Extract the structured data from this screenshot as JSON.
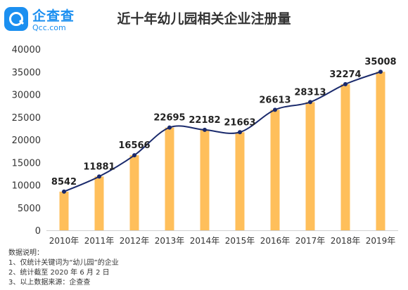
{
  "logo": {
    "name": "企查查",
    "url": "Qcc.com",
    "icon": "magnifier-icon",
    "color": "#1b8ff0"
  },
  "chart_data": {
    "type": "bar",
    "title": "近十年幼儿园相关企业注册量",
    "xlabel": "",
    "ylabel": "",
    "categories": [
      "2010年",
      "2011年",
      "2012年",
      "2013年",
      "2014年",
      "2015年",
      "2016年",
      "2017年",
      "2018年",
      "2019年"
    ],
    "values": [
      8542,
      11881,
      16566,
      22695,
      22182,
      21663,
      26613,
      28313,
      32274,
      35008
    ],
    "overlay_line": {
      "style": "smooth",
      "marker": "dot",
      "color": "#1a2a6c"
    },
    "ylim": [
      0,
      40000
    ],
    "yticks": [
      0,
      5000,
      10000,
      15000,
      20000,
      25000,
      30000,
      35000,
      40000
    ],
    "bar_color": "#ffbf5b",
    "grid": false,
    "legend": "none",
    "data_labels": true
  },
  "notes": {
    "heading": "数据说明：",
    "items": [
      "1、仅统计关键词为“幼儿园”的企业",
      "2、统计截至 2020 年 6 月 2 日",
      "3、以上数据来源：企查查"
    ]
  }
}
